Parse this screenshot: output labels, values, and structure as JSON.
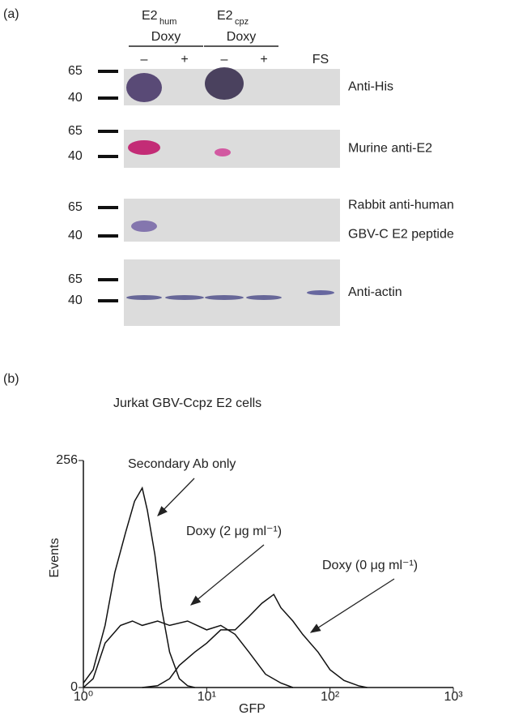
{
  "panel_a": {
    "label": "(a)",
    "groups": [
      {
        "name": "E2",
        "sub": "hum",
        "treatment": "Doxy"
      },
      {
        "name": "E2",
        "sub": "cpz",
        "treatment": "Doxy"
      }
    ],
    "lanes": [
      "–",
      "+",
      "–",
      "+",
      "FS"
    ],
    "blots": [
      {
        "markers": [
          "65",
          "40"
        ],
        "label_lines": [
          "Anti-His"
        ]
      },
      {
        "markers": [
          "65",
          "40"
        ],
        "label_lines": [
          "Murine anti-E2"
        ]
      },
      {
        "markers": [
          "65",
          "40"
        ],
        "label_lines": [
          "Rabbit anti-human",
          "GBV-C E2 peptide"
        ]
      },
      {
        "markers": [
          "65",
          "40"
        ],
        "label_lines": [
          "Anti-actin"
        ]
      }
    ]
  },
  "panel_b_label": "(b)",
  "chart_data": {
    "type": "line",
    "title": "Jurkat GBV-Ccpz E2 cells",
    "x_label": "GFP",
    "y_label": "Events",
    "log_x": true,
    "xlim": [
      1,
      1000
    ],
    "ylim": [
      0,
      256
    ],
    "xticks": [
      {
        "value": 1,
        "label": "10⁰"
      },
      {
        "value": 10,
        "label": "10¹"
      },
      {
        "value": 100,
        "label": "10²"
      },
      {
        "value": 1000,
        "label": "10³"
      }
    ],
    "yticks": [
      0,
      256
    ],
    "series": [
      {
        "name": "Secondary Ab only",
        "color": "#111111",
        "x": [
          1,
          1.2,
          1.5,
          1.8,
          2.2,
          2.6,
          3,
          3.3,
          3.8,
          4.3,
          5,
          6,
          7,
          8
        ],
        "values": [
          5,
          20,
          70,
          130,
          175,
          210,
          225,
          200,
          150,
          90,
          40,
          10,
          2,
          0
        ]
      },
      {
        "name": "Doxy (2 μg ml⁻¹)",
        "color": "#111111",
        "x": [
          1,
          1.2,
          1.5,
          2,
          2.5,
          3,
          4,
          5,
          7,
          10,
          13,
          17,
          22,
          30,
          40,
          50
        ],
        "values": [
          0,
          10,
          50,
          70,
          75,
          70,
          75,
          70,
          75,
          65,
          70,
          60,
          40,
          15,
          5,
          0
        ]
      },
      {
        "name": "Doxy (0 μg ml⁻¹)",
        "color": "#111111",
        "x": [
          3,
          4,
          5,
          6,
          8,
          10,
          13,
          17,
          22,
          28,
          35,
          40,
          50,
          60,
          80,
          100,
          130,
          170,
          200
        ],
        "values": [
          0,
          2,
          10,
          25,
          40,
          50,
          65,
          65,
          80,
          95,
          105,
          90,
          75,
          60,
          40,
          20,
          8,
          2,
          0
        ]
      }
    ]
  }
}
